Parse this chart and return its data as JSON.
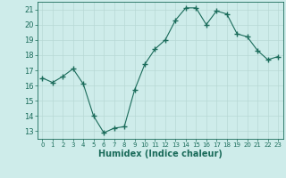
{
  "x": [
    0,
    1,
    2,
    3,
    4,
    5,
    6,
    7,
    8,
    9,
    10,
    11,
    12,
    13,
    14,
    15,
    16,
    17,
    18,
    19,
    20,
    21,
    22,
    23
  ],
  "y": [
    16.5,
    16.2,
    16.6,
    17.1,
    16.1,
    14.0,
    12.9,
    13.2,
    13.3,
    15.7,
    17.4,
    18.4,
    19.0,
    20.3,
    21.1,
    21.1,
    20.0,
    20.9,
    20.7,
    19.4,
    19.2,
    18.3,
    17.7,
    17.9
  ],
  "xlabel": "Humidex (Indice chaleur)",
  "ylim": [
    12.5,
    21.5
  ],
  "xlim": [
    -0.5,
    23.5
  ],
  "yticks": [
    13,
    14,
    15,
    16,
    17,
    18,
    19,
    20,
    21
  ],
  "xticks": [
    0,
    1,
    2,
    3,
    4,
    5,
    6,
    7,
    8,
    9,
    10,
    11,
    12,
    13,
    14,
    15,
    16,
    17,
    18,
    19,
    20,
    21,
    22,
    23
  ],
  "xtick_labels": [
    "0",
    "1",
    "2",
    "3",
    "4",
    "5",
    "6",
    "7",
    "8",
    "9",
    "10",
    "11",
    "12",
    "13",
    "14",
    "15",
    "16",
    "17",
    "18",
    "19",
    "20",
    "21",
    "22",
    "23"
  ],
  "line_color": "#1a6b5a",
  "marker": "+",
  "marker_size": 4,
  "bg_color": "#ceecea",
  "grid_color": "#b8d8d5",
  "fig_bg": "#ceecea",
  "tick_color": "#1a6b5a",
  "xlabel_fontsize": 7,
  "ytick_fontsize": 6,
  "xtick_fontsize": 5
}
